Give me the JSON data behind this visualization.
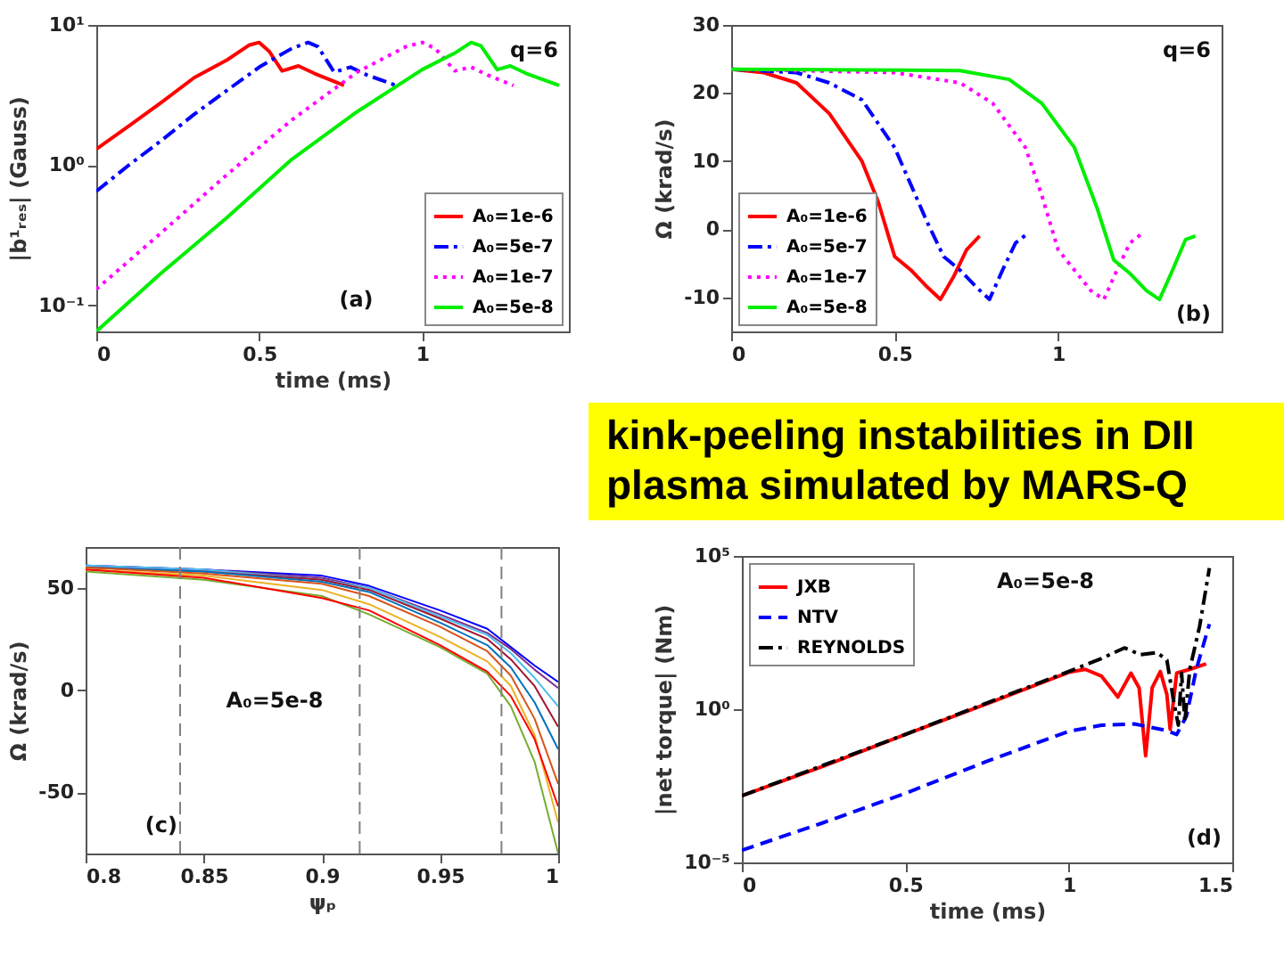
{
  "chart_data": [
    {
      "type": "line",
      "ylabel": "|b¹ᵣₑₛ| (Gauss)",
      "xlabel": "time (ms)",
      "log": "y",
      "xlim": [
        0,
        1.45
      ],
      "xticks": [
        0,
        0.5,
        1
      ],
      "ylim": [
        0.065,
        10
      ],
      "yticks": [
        {
          "value": 0.1,
          "label": "10⁻¹"
        },
        {
          "value": 1,
          "label": "10⁰"
        },
        {
          "value": 10,
          "label": "10¹"
        }
      ],
      "legend": "bottom right",
      "annotations": [
        "q=6",
        "(a)"
      ],
      "series": [
        {
          "name": "A₀=1e-6",
          "color": "#ff0000",
          "line_style": "solid",
          "x": [
            0,
            0.1,
            0.2,
            0.3,
            0.4,
            0.47,
            0.5,
            0.53,
            0.57,
            0.62,
            0.67,
            0.76
          ],
          "values": [
            1.3,
            1.9,
            2.8,
            4.2,
            5.6,
            7.2,
            7.5,
            6.5,
            4.7,
            5.1,
            4.5,
            3.7
          ]
        },
        {
          "name": "A₀=5e-7",
          "color": "#0000ff",
          "line_style": "dashdot",
          "x": [
            0,
            0.1,
            0.2,
            0.3,
            0.4,
            0.5,
            0.6,
            0.65,
            0.68,
            0.73,
            0.78,
            0.83,
            0.92
          ],
          "values": [
            0.65,
            1.0,
            1.5,
            2.3,
            3.4,
            5.0,
            6.8,
            7.5,
            7.0,
            4.6,
            5.0,
            4.4,
            3.7
          ]
        },
        {
          "name": "A₀=1e-7",
          "color": "#ff00ff",
          "line_style": "dotted",
          "x": [
            0,
            0.2,
            0.4,
            0.6,
            0.8,
            0.95,
            1.0,
            1.04,
            1.1,
            1.15,
            1.2,
            1.28
          ],
          "values": [
            0.13,
            0.33,
            0.85,
            2.1,
            4.6,
            7,
            7.5,
            6.8,
            4.7,
            5.0,
            4.4,
            3.7
          ]
        },
        {
          "name": "A₀=5e-8",
          "color": "#00ee00",
          "line_style": "solid",
          "x": [
            0,
            0.2,
            0.4,
            0.6,
            0.8,
            1.0,
            1.1,
            1.15,
            1.18,
            1.23,
            1.27,
            1.32,
            1.42
          ],
          "values": [
            0.065,
            0.17,
            0.42,
            1.1,
            2.4,
            4.8,
            6.3,
            7.5,
            7.1,
            4.8,
            5.1,
            4.5,
            3.7
          ]
        }
      ]
    },
    {
      "type": "line",
      "ylabel": "Ω (krad/s)",
      "xlim": [
        0,
        1.5
      ],
      "xticks": [
        0,
        0.5,
        1
      ],
      "ylim": [
        -15,
        30
      ],
      "yticks": [
        -10,
        0,
        10,
        20,
        30
      ],
      "legend": "bottom left",
      "annotations": [
        "q=6",
        "(b)"
      ],
      "series": [
        {
          "name": "A₀=1e-6",
          "color": "#ff0000",
          "line_style": "solid",
          "x": [
            0,
            0.1,
            0.2,
            0.3,
            0.4,
            0.45,
            0.5,
            0.55,
            0.6,
            0.64,
            0.68,
            0.72,
            0.76
          ],
          "values": [
            23.5,
            23,
            21.5,
            17,
            10,
            4,
            -4,
            -6,
            -8.5,
            -10.3,
            -7,
            -3,
            -1
          ]
        },
        {
          "name": "A₀=5e-7",
          "color": "#0000ff",
          "line_style": "dashdot",
          "x": [
            0,
            0.2,
            0.3,
            0.4,
            0.5,
            0.6,
            0.65,
            0.7,
            0.75,
            0.79,
            0.83,
            0.87,
            0.91
          ],
          "values": [
            23.5,
            23,
            21.5,
            19,
            12,
            1,
            -4,
            -6,
            -8.5,
            -10.3,
            -6,
            -2,
            -0.5
          ]
        },
        {
          "name": "A₀=1e-7",
          "color": "#ff00ff",
          "line_style": "dotted",
          "x": [
            0,
            0.5,
            0.7,
            0.8,
            0.9,
            0.95,
            1.0,
            1.05,
            1.1,
            1.14,
            1.18,
            1.22,
            1.26
          ],
          "values": [
            23.5,
            23,
            21.5,
            18.5,
            12,
            5,
            -3,
            -6,
            -9,
            -10.3,
            -6,
            -2,
            -0.5
          ]
        },
        {
          "name": "A₀=5e-8",
          "color": "#00ee00",
          "line_style": "solid",
          "x": [
            0,
            0.7,
            0.85,
            0.95,
            1.05,
            1.12,
            1.17,
            1.22,
            1.27,
            1.31,
            1.35,
            1.39,
            1.42
          ],
          "values": [
            23.5,
            23.3,
            22,
            18.5,
            12,
            3,
            -4.5,
            -6.5,
            -9,
            -10.3,
            -6,
            -1.5,
            -1
          ]
        }
      ]
    },
    {
      "type": "other",
      "annotations": [
        "kink-peeling instabilities in DII",
        "plasma simulated by MARS-Q"
      ]
    },
    {
      "type": "line",
      "ylabel": "Ω (krad/s)",
      "xlabel": "ψₚ",
      "xlim": [
        0.8,
        1
      ],
      "xticks": [
        0.8,
        0.85,
        0.9,
        0.95,
        1
      ],
      "ylim": [
        -80,
        70
      ],
      "yticks": [
        -50,
        0,
        50
      ],
      "annotations": [
        "A₀=5e-8",
        "(c)"
      ],
      "x": [
        0.8,
        0.85,
        0.9,
        0.92,
        0.95,
        0.97,
        0.98,
        0.99,
        1.0
      ],
      "ref_lines": [
        {
          "axis": "x",
          "value": 0.84,
          "color": "#808080",
          "line_style": "dashed"
        },
        {
          "axis": "x",
          "value": 0.916,
          "color": "#808080",
          "line_style": "dashed"
        },
        {
          "axis": "x",
          "value": 0.976,
          "color": "#808080",
          "line_style": "dashed"
        }
      ],
      "series": [
        {
          "color": "#0000ff",
          "values": [
            61,
            59,
            56,
            51,
            39,
            30,
            21,
            12,
            4
          ]
        },
        {
          "color": "#7e2f8e",
          "values": [
            61,
            59,
            55,
            50,
            37,
            28,
            20,
            10,
            1
          ]
        },
        {
          "color": "#4dbeee",
          "values": [
            61,
            59,
            54,
            50,
            36,
            27,
            18,
            6,
            -8
          ]
        },
        {
          "color": "#a2142f",
          "values": [
            60,
            58,
            54,
            49,
            35,
            25,
            15,
            2,
            -18
          ]
        },
        {
          "color": "#0072bd",
          "values": [
            60,
            58,
            53,
            48,
            33,
            22,
            11,
            -6,
            -29
          ]
        },
        {
          "color": "#d95319",
          "values": [
            60,
            57,
            52,
            46,
            31,
            19,
            7,
            -14,
            -46
          ]
        },
        {
          "color": "#edb120",
          "values": [
            59,
            56,
            49,
            42,
            26,
            14,
            2,
            -22,
            -65
          ]
        },
        {
          "color": "#77ac30",
          "values": [
            58,
            54,
            46,
            37,
            21,
            8,
            -8,
            -35,
            -80
          ]
        },
        {
          "color": "#ff0000",
          "values": [
            59,
            55,
            45,
            39,
            22,
            9,
            -3,
            -24,
            -57
          ]
        }
      ]
    },
    {
      "type": "line",
      "ylabel": "|net torque| (Nm)",
      "xlabel": "time (ms)",
      "log": "y",
      "xlim": [
        0,
        1.5
      ],
      "xticks": [
        0,
        0.5,
        1,
        1.5
      ],
      "ylim": [
        1e-05,
        100000
      ],
      "yticks": [
        {
          "value": 1e-05,
          "label": "10⁻⁵"
        },
        {
          "value": 1,
          "label": "10⁰"
        },
        {
          "value": 100000,
          "label": "10⁵"
        }
      ],
      "legend": "top left",
      "annotations": [
        "A₀=5e-8",
        "(d)"
      ],
      "series": [
        {
          "name": "JXB",
          "color": "#ff0000",
          "line_style": "solid",
          "x": [
            0,
            0.25,
            0.5,
            0.75,
            1.0,
            1.05,
            1.1,
            1.15,
            1.19,
            1.215,
            1.235,
            1.255,
            1.28,
            1.3,
            1.31,
            1.33,
            1.37,
            1.42
          ],
          "values": [
            0.0015,
            0.014,
            0.15,
            1.5,
            16,
            20,
            12,
            2.5,
            15,
            5,
            0.03,
            5,
            17,
            3,
            0.22,
            15,
            20,
            30
          ]
        },
        {
          "name": "NTV",
          "color": "#0000ff",
          "line_style": "dashed",
          "x": [
            0,
            0.25,
            0.5,
            0.75,
            1.0,
            1.1,
            1.2,
            1.3,
            1.33,
            1.36,
            1.39,
            1.43
          ],
          "values": [
            2.5e-05,
            0.0002,
            0.0018,
            0.02,
            0.19,
            0.3,
            0.33,
            0.2,
            0.15,
            0.6,
            20,
            600
          ]
        },
        {
          "name": "REYNOLDS",
          "color": "#000000",
          "line_style": "dashdot",
          "x": [
            0,
            0.5,
            1.0,
            1.1,
            1.17,
            1.22,
            1.27,
            1.3,
            1.32,
            1.335,
            1.345,
            1.355,
            1.37,
            1.4,
            1.43
          ],
          "values": [
            0.0015,
            0.15,
            17,
            45,
            100,
            60,
            70,
            40,
            2,
            0.3,
            15,
            0.4,
            20,
            500,
            40000
          ]
        }
      ]
    }
  ]
}
